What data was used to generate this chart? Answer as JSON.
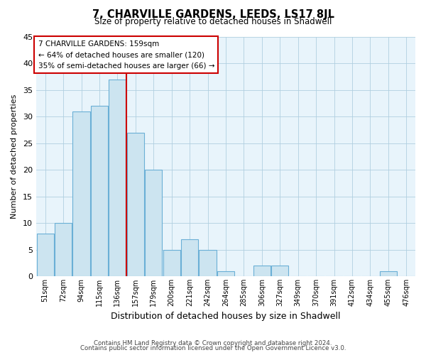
{
  "title": "7, CHARVILLE GARDENS, LEEDS, LS17 8JL",
  "subtitle": "Size of property relative to detached houses in Shadwell",
  "xlabel": "Distribution of detached houses by size in Shadwell",
  "ylabel": "Number of detached properties",
  "bin_labels": [
    "51sqm",
    "72sqm",
    "94sqm",
    "115sqm",
    "136sqm",
    "157sqm",
    "179sqm",
    "200sqm",
    "221sqm",
    "242sqm",
    "264sqm",
    "285sqm",
    "306sqm",
    "327sqm",
    "349sqm",
    "370sqm",
    "391sqm",
    "412sqm",
    "434sqm",
    "455sqm",
    "476sqm"
  ],
  "bar_heights": [
    8,
    10,
    31,
    32,
    37,
    27,
    20,
    5,
    7,
    5,
    1,
    0,
    2,
    2,
    0,
    0,
    0,
    0,
    0,
    1,
    0
  ],
  "bar_color": "#cce4f0",
  "bar_edge_color": "#6aafd6",
  "marker_bin_index": 5,
  "marker_color": "#cc0000",
  "ylim": [
    0,
    45
  ],
  "yticks": [
    0,
    5,
    10,
    15,
    20,
    25,
    30,
    35,
    40,
    45
  ],
  "annotation_title": "7 CHARVILLE GARDENS: 159sqm",
  "annotation_line1": "← 64% of detached houses are smaller (120)",
  "annotation_line2": "35% of semi-detached houses are larger (66) →",
  "footer_line1": "Contains HM Land Registry data © Crown copyright and database right 2024.",
  "footer_line2": "Contains public sector information licensed under the Open Government Licence v3.0.",
  "background_color": "#ffffff",
  "plot_bg_color": "#e8f4fb",
  "grid_color": "#b0cfe0"
}
